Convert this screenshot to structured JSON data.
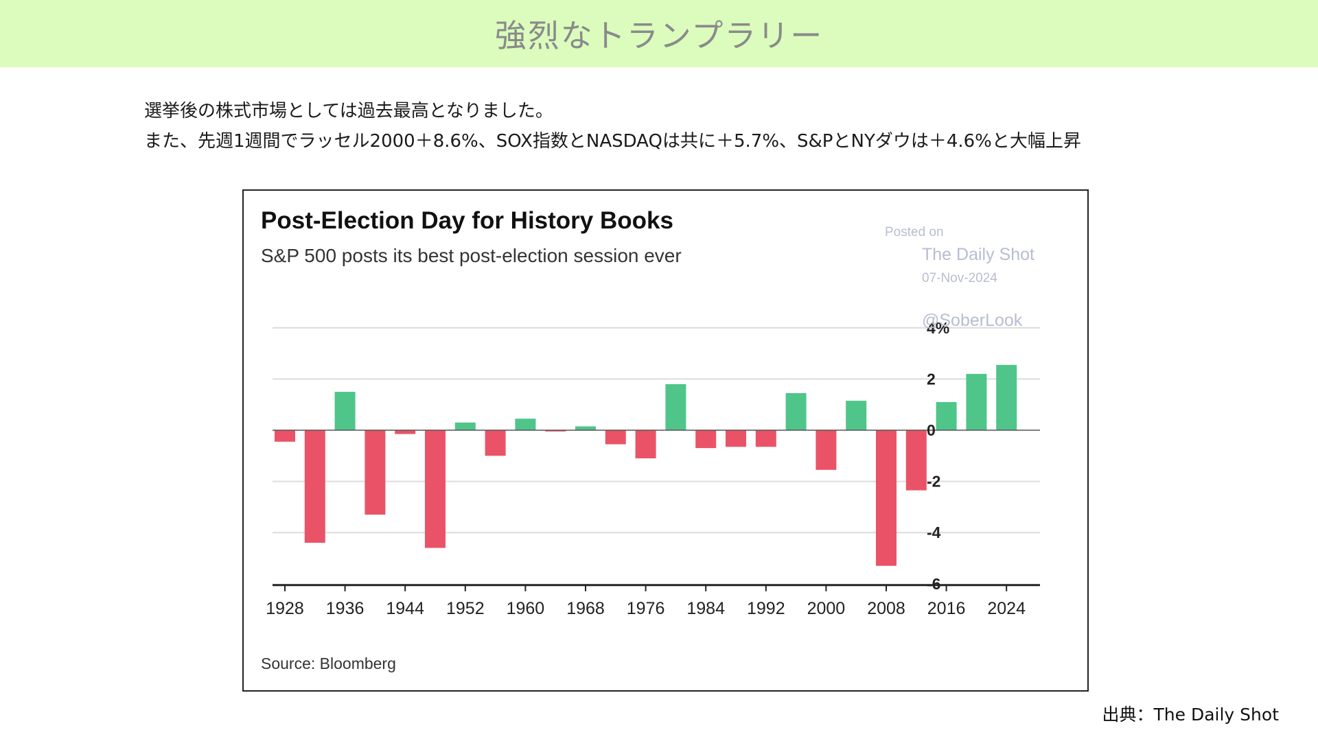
{
  "header": {
    "title": "強烈なトランプラリー"
  },
  "description": {
    "line1": "選挙後の株式市場としては過去最高となりました。",
    "line2": "また、先週1週間でラッセル2000＋8.6%、SOX指数とNASDAQは共に＋5.7%、S&PとNYダウは＋4.6%と大幅上昇"
  },
  "credit": "出典：The Daily Shot",
  "colors": {
    "positive": "#4fc58a",
    "negative": "#ea5367",
    "grid": "#dcdcdc",
    "header_bg": "#dbfcbd",
    "watermark": "#b8bdd0"
  },
  "chart_data": {
    "type": "bar",
    "title": "Post-Election Day for History Books",
    "subtitle": "S&P 500 posts its best post-election session ever",
    "source": "Source: Bloomberg",
    "watermark": {
      "posted_on": "Posted on",
      "name": "The Daily Shot",
      "date": "07-Nov-2024",
      "handle": "@SoberLook"
    },
    "x": [
      1928,
      1932,
      1936,
      1940,
      1944,
      1948,
      1952,
      1956,
      1960,
      1964,
      1968,
      1972,
      1976,
      1980,
      1984,
      1988,
      1992,
      1996,
      2000,
      2004,
      2008,
      2012,
      2016,
      2020,
      2024
    ],
    "values": [
      -0.45,
      -4.4,
      1.5,
      -3.3,
      -0.15,
      -4.6,
      0.3,
      -1.0,
      0.45,
      -0.05,
      0.15,
      -0.55,
      -1.1,
      1.8,
      -0.7,
      -0.65,
      -0.65,
      1.45,
      -1.55,
      1.15,
      -5.3,
      -2.35,
      1.1,
      2.2,
      2.55
    ],
    "x_ticks": [
      "1928",
      "1936",
      "1944",
      "1952",
      "1960",
      "1968",
      "1976",
      "1984",
      "1992",
      "2000",
      "2008",
      "2016",
      "2024"
    ],
    "y_ticks": [
      "4%",
      "2",
      "0",
      "-2",
      "-4",
      "-6"
    ],
    "ylim": [
      -6,
      4
    ],
    "grid": true,
    "y_axis_side": "right"
  }
}
